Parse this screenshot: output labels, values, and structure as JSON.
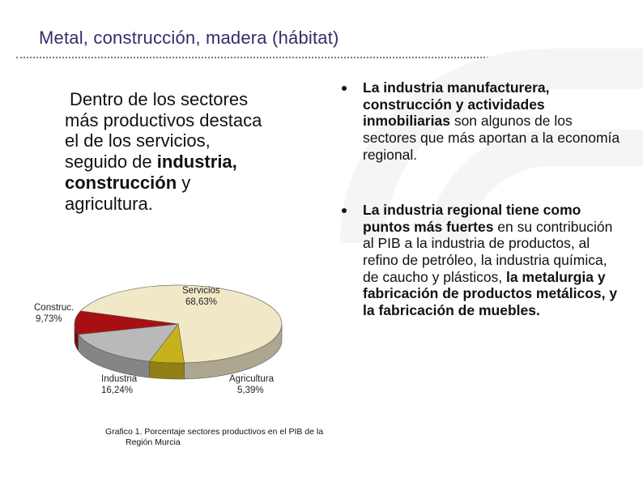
{
  "title": "Metal, construcción, madera (hábitat)",
  "left_paragraph": {
    "line1": "Dentro de los sectores",
    "line2": "más productivos destaca",
    "line3": "el de los servicios,",
    "line4_pre": "seguido de ",
    "line4_bold": "industria,",
    "line5_bold": "construcción",
    "line5_post": " y",
    "line6": "agricultura."
  },
  "bullets": [
    {
      "bold": "La industria manufacturera, construcción y actividades inmobiliarias",
      "rest": " son algunos de los sectores que más aportan a la economía regional."
    },
    {
      "bold1": "La industria regional tiene como puntos más fuertes",
      "mid": " en su contribución al PIB a la industria de productos, al refino de petróleo, la industria química, de caucho y plásticos, ",
      "bold2": "la metalurgia y fabricación de productos metálicos, y la fabricación de muebles."
    }
  ],
  "chart_data": {
    "type": "pie",
    "title": "",
    "slices": [
      {
        "label": "Servicios",
        "value": 68.63,
        "display": "68,63%",
        "color": "#f1e8c8"
      },
      {
        "label": "Agricultura",
        "value": 5.39,
        "display": "5,39%",
        "color": "#c8b21c"
      },
      {
        "label": "Industria",
        "value": 16.24,
        "display": "16,24%",
        "color": "#b9b9b9"
      },
      {
        "label": "Construc.",
        "value": 9.73,
        "display": "9,73%",
        "color": "#a80f12"
      }
    ]
  },
  "caption": {
    "line1": "Grafico 1. Porcentaje sectores productivos en el PIB de la",
    "line2": "Región Murcia"
  }
}
